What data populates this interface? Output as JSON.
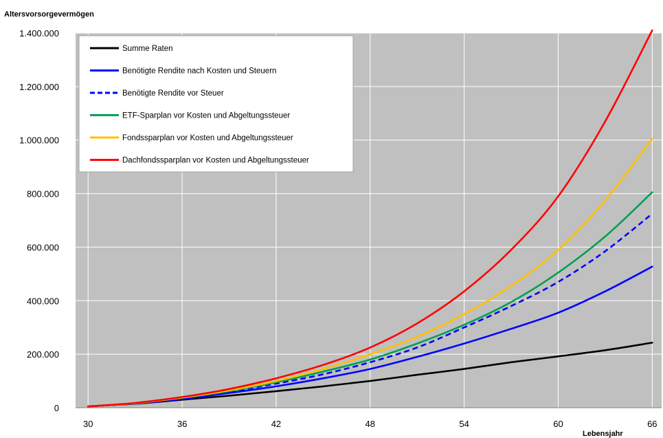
{
  "chart_data": {
    "type": "line",
    "ylabel": "Altersvorsorgevermögen",
    "xlabel": "Lebensjahr",
    "x": [
      30,
      33,
      36,
      39,
      42,
      45,
      48,
      51,
      54,
      57,
      60,
      63,
      66
    ],
    "xticks": [
      "30",
      "36",
      "42",
      "48",
      "54",
      "60",
      "66"
    ],
    "xtick_values": [
      30,
      36,
      42,
      48,
      54,
      60,
      66
    ],
    "yticks": [
      "0",
      "200.000",
      "400.000",
      "600.000",
      "800.000",
      "1.000.000",
      "1.200.000",
      "1.400.000"
    ],
    "ytick_values": [
      0,
      200000,
      400000,
      600000,
      800000,
      1000000,
      1200000,
      1400000
    ],
    "xlim": [
      29.2,
      66.6
    ],
    "ylim": [
      0,
      1400000
    ],
    "grid": true,
    "background": "#c0c0c0",
    "legend_position": "top-left",
    "series": [
      {
        "name": "Summe Raten",
        "color": "#000000",
        "dash": false,
        "values": [
          5000,
          15000,
          30000,
          45000,
          62000,
          80000,
          100000,
          123000,
          145000,
          170000,
          192000,
          215000,
          243000
        ]
      },
      {
        "name": "Benötigte Rendite nach Kosten und Steuern",
        "color": "#0000ff",
        "dash": false,
        "values": [
          5000,
          16000,
          33000,
          55000,
          80000,
          110000,
          145000,
          190000,
          240000,
          295000,
          355000,
          435000,
          527000
        ]
      },
      {
        "name": "Benötigte Rendite vor Steuer",
        "color": "#0000ff",
        "dash": true,
        "values": [
          5000,
          16000,
          35000,
          60000,
          90000,
          125000,
          170000,
          225000,
          300000,
          380000,
          470000,
          585000,
          725000
        ]
      },
      {
        "name": "ETF-Sparplan vor Kosten und Abgeltungssteuer",
        "color": "#00a050",
        "dash": false,
        "values": [
          5000,
          17000,
          37000,
          62000,
          95000,
          135000,
          180000,
          240000,
          310000,
          395000,
          505000,
          640000,
          805000
        ]
      },
      {
        "name": "Fondssparplan vor Kosten und Abgeltungssteuer",
        "color": "#ffc000",
        "dash": false,
        "values": [
          5000,
          17000,
          38000,
          65000,
          100000,
          145000,
          200000,
          265000,
          350000,
          455000,
          590000,
          775000,
          1005000
        ]
      },
      {
        "name": "Dachfondssparplan vor Kosten und Abgeltungssteuer",
        "color": "#ff0000",
        "dash": false,
        "values": [
          5000,
          18000,
          40000,
          70000,
          110000,
          160000,
          225000,
          315000,
          435000,
          590000,
          790000,
          1070000,
          1410000
        ]
      }
    ]
  }
}
